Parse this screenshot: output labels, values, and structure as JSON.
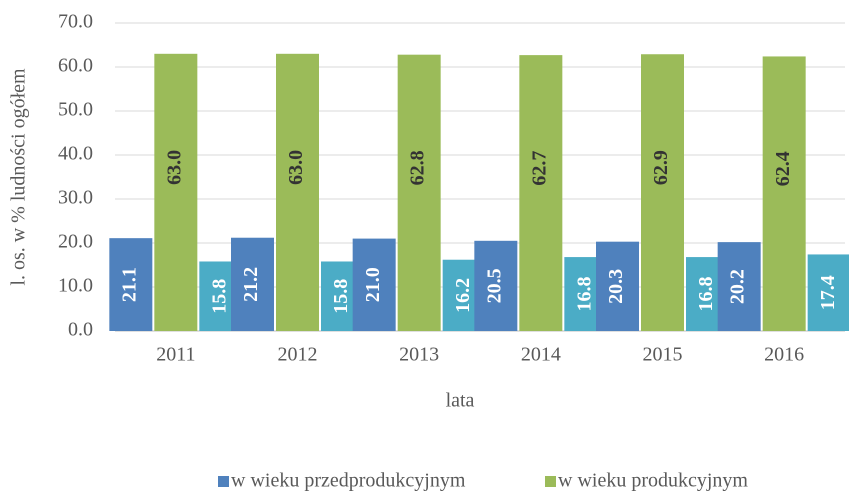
{
  "chart_data": {
    "type": "bar",
    "categories": [
      "2011",
      "2012",
      "2013",
      "2014",
      "2015",
      "2016"
    ],
    "series": [
      {
        "name": "w wieku przedprodukcyjnym",
        "color": "#4f81bd",
        "values": [
          21.1,
          21.2,
          21.0,
          20.5,
          20.3,
          20.2
        ],
        "value_labels": [
          "21.1",
          "21.2",
          "21.0",
          "20.5",
          "20.3",
          "20.2"
        ]
      },
      {
        "name": "w wieku produkcyjnym",
        "color": "#9bbb59",
        "values": [
          63.0,
          63.0,
          62.8,
          62.7,
          62.9,
          62.4
        ],
        "value_labels": [
          "63.0",
          "63.0",
          "62.8",
          "62.7",
          "62.9",
          "62.4"
        ]
      },
      {
        "color": "#4bacc6",
        "values": [
          15.8,
          15.8,
          16.2,
          16.8,
          16.8,
          17.4
        ],
        "value_labels": [
          "15.8",
          "15.8",
          "16.2",
          "16.8",
          "16.8",
          "17.4"
        ]
      }
    ],
    "xlabel": "lata",
    "ylabel": "l. os. w % ludności ogółem",
    "ylim": [
      0,
      70
    ],
    "yticks": [
      {
        "value": 0,
        "label": "0.0"
      },
      {
        "value": 10,
        "label": "10.0"
      },
      {
        "value": 20,
        "label": "20.0"
      },
      {
        "value": 30,
        "label": "30.0"
      },
      {
        "value": 40,
        "label": "40.0"
      },
      {
        "value": 50,
        "label": "50.0"
      },
      {
        "value": 60,
        "label": "60.0"
      },
      {
        "value": 70,
        "label": "70.0"
      }
    ],
    "grid": true
  }
}
